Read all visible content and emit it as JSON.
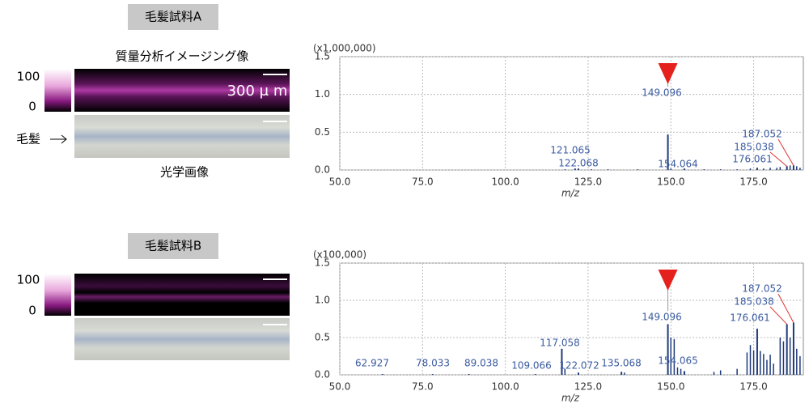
{
  "samples": [
    {
      "label": "毛髪試料A",
      "imaging_title": "質量分析イメージング像",
      "scale_max": 100,
      "scale_min": 0,
      "scale_bar": "300 μ m",
      "hair_label": "毛髪",
      "optical_title": "光学画像"
    },
    {
      "label": "毛髪試料B",
      "scale_max": 100,
      "scale_min": 0
    }
  ],
  "chart_data": [
    {
      "type": "bar",
      "y_multiplier": "(x1,000,000)",
      "xlabel": "m/z",
      "color": "#1f3a7a",
      "x": [
        121.065,
        122.068,
        149.096,
        154.064,
        176.061,
        185.038,
        187.052
      ],
      "values": [
        0.02,
        0.02,
        0.47,
        0.02,
        0.03,
        0.05,
        0.06
      ],
      "minor_x": [
        118,
        126,
        131,
        140,
        150,
        160,
        165,
        170,
        174,
        178,
        180,
        182,
        183,
        186,
        188,
        189
      ],
      "minor_values": [
        0.01,
        0.01,
        0.01,
        0.01,
        0.02,
        0.01,
        0.01,
        0.01,
        0.02,
        0.02,
        0.03,
        0.03,
        0.04,
        0.06,
        0.05,
        0.03
      ],
      "xlim": [
        50,
        190
      ],
      "ylim": [
        0,
        1.5
      ],
      "xticks": [
        {
          "value": 50,
          "label": "50.0"
        },
        {
          "value": 75,
          "label": "75.0"
        },
        {
          "value": 100,
          "label": "100.0"
        },
        {
          "value": 125,
          "label": "125.0"
        },
        {
          "value": 150,
          "label": "150.0"
        },
        {
          "value": 175,
          "label": "175.0"
        }
      ],
      "yticks": [
        {
          "value": 0,
          "label": "0.0"
        },
        {
          "value": 0.5,
          "label": "0.5"
        },
        {
          "value": 1,
          "label": "1.0"
        },
        {
          "value": 1.5,
          "label": "1.5"
        }
      ],
      "grid": true
    },
    {
      "type": "bar",
      "y_multiplier": "(x100,000)",
      "xlabel": "m/z",
      "color": "#1f3a7a",
      "x": [
        62.927,
        78.033,
        89.038,
        109.066,
        117.058,
        122.072,
        135.068,
        149.096,
        154.065,
        176.061,
        185.038,
        187.052
      ],
      "values": [
        0.01,
        0.01,
        0.01,
        0.01,
        0.35,
        0.03,
        0.04,
        0.68,
        0.05,
        0.62,
        0.68,
        0.7
      ],
      "minor_x": [
        118,
        136,
        150,
        151,
        152,
        153,
        163,
        165,
        170,
        173,
        174,
        175,
        177,
        178,
        179,
        180,
        181,
        183,
        184,
        186,
        188,
        189
      ],
      "minor_values": [
        0.08,
        0.03,
        0.5,
        0.48,
        0.1,
        0.08,
        0.04,
        0.06,
        0.08,
        0.3,
        0.4,
        0.33,
        0.32,
        0.28,
        0.2,
        0.27,
        0.15,
        0.5,
        0.45,
        0.5,
        0.35,
        0.25
      ],
      "xlim": [
        50,
        190
      ],
      "ylim": [
        0,
        1.5
      ],
      "xticks": [
        {
          "value": 50,
          "label": "50.0"
        },
        {
          "value": 75,
          "label": "75.0"
        },
        {
          "value": 100,
          "label": "100.0"
        },
        {
          "value": 125,
          "label": "125.0"
        },
        {
          "value": 150,
          "label": "150.0"
        },
        {
          "value": 175,
          "label": "175.0"
        }
      ],
      "yticks": [
        {
          "value": 0,
          "label": "0.0"
        },
        {
          "value": 0.5,
          "label": "0.5"
        },
        {
          "value": 1,
          "label": "1.0"
        },
        {
          "value": 1.5,
          "label": "1.5"
        }
      ],
      "grid": true
    }
  ]
}
